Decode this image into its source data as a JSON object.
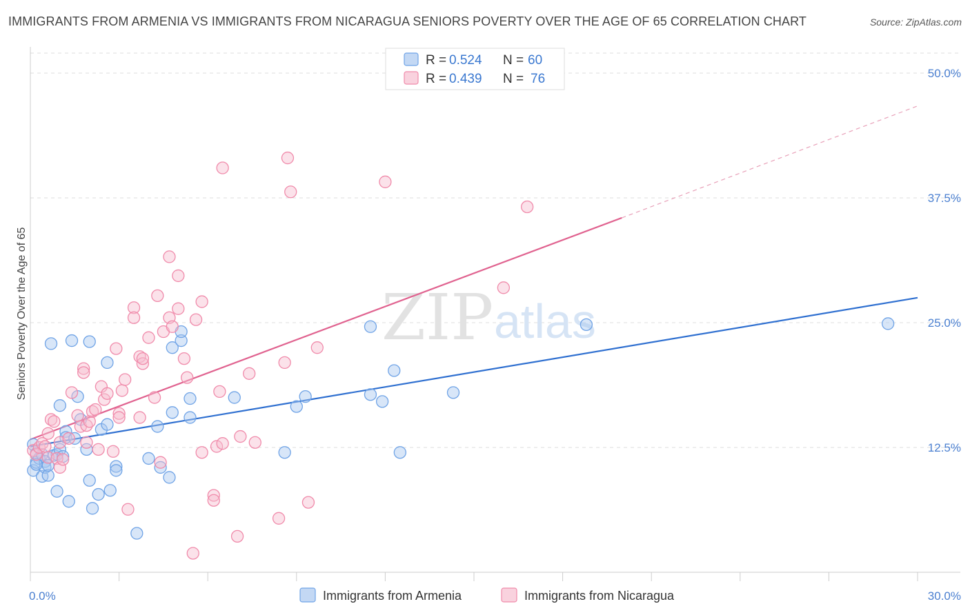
{
  "title": "IMMIGRANTS FROM ARMENIA VS IMMIGRANTS FROM NICARAGUA SENIORS POVERTY OVER THE AGE OF 65 CORRELATION CHART",
  "source": "Source: ZipAtlas.com",
  "watermark": {
    "zip": "ZIP",
    "atlas": "atlas"
  },
  "legend_box": {
    "rows": [
      {
        "r_label": "R =",
        "r_value": "0.524",
        "n_label": "N =",
        "n_value": "60"
      },
      {
        "r_label": "R =",
        "r_value": "0.439",
        "n_label": "N =",
        "n_value": "76"
      }
    ]
  },
  "chart_data": {
    "type": "scatter",
    "ylabel": "Seniors Poverty Over the Age of 65",
    "xlim": [
      0,
      30
    ],
    "ylim": [
      0,
      52
    ],
    "x_tick_labels": [
      "0.0%",
      "30.0%"
    ],
    "y_ticks": [
      12.5,
      25.0,
      37.5,
      50.0
    ],
    "y_tick_labels": [
      "12.5%",
      "25.0%",
      "37.5%",
      "50.0%"
    ],
    "grid": true,
    "legend_placement": "top-center and bottom",
    "series": [
      {
        "name": "Immigrants from Armenia",
        "color": "#6fa3e6",
        "fill": "#a9c8f0",
        "points": [
          [
            0.1,
            12.8
          ],
          [
            0.1,
            10.2
          ],
          [
            0.2,
            11.0
          ],
          [
            0.2,
            11.9
          ],
          [
            0.3,
            11.4
          ],
          [
            0.4,
            11.8
          ],
          [
            0.4,
            9.6
          ],
          [
            0.5,
            11.1
          ],
          [
            0.5,
            10.5
          ],
          [
            0.6,
            9.7
          ],
          [
            0.7,
            22.9
          ],
          [
            0.8,
            11.7
          ],
          [
            0.9,
            11.8
          ],
          [
            0.9,
            8.1
          ],
          [
            1.0,
            12.3
          ],
          [
            1.0,
            16.7
          ],
          [
            1.1,
            11.6
          ],
          [
            1.2,
            14.1
          ],
          [
            1.2,
            13.5
          ],
          [
            1.3,
            7.1
          ],
          [
            1.4,
            23.2
          ],
          [
            1.5,
            13.4
          ],
          [
            1.6,
            17.6
          ],
          [
            1.7,
            15.3
          ],
          [
            1.9,
            12.3
          ],
          [
            2.0,
            9.2
          ],
          [
            2.0,
            23.1
          ],
          [
            2.1,
            6.4
          ],
          [
            2.3,
            7.8
          ],
          [
            2.4,
            14.3
          ],
          [
            2.6,
            14.8
          ],
          [
            2.6,
            21.0
          ],
          [
            2.7,
            8.2
          ],
          [
            2.9,
            10.6
          ],
          [
            2.9,
            10.2
          ],
          [
            3.6,
            3.9
          ],
          [
            4.0,
            11.4
          ],
          [
            4.3,
            14.6
          ],
          [
            4.4,
            10.5
          ],
          [
            4.7,
            9.5
          ],
          [
            4.8,
            16.0
          ],
          [
            4.8,
            22.5
          ],
          [
            5.1,
            23.2
          ],
          [
            5.1,
            24.1
          ],
          [
            5.4,
            17.4
          ],
          [
            5.4,
            15.5
          ],
          [
            6.9,
            17.5
          ],
          [
            8.6,
            12.0
          ],
          [
            9.0,
            16.6
          ],
          [
            9.3,
            17.6
          ],
          [
            11.5,
            24.6
          ],
          [
            11.5,
            17.8
          ],
          [
            11.9,
            17.1
          ],
          [
            12.3,
            20.2
          ],
          [
            12.5,
            12.0
          ],
          [
            14.3,
            18.0
          ],
          [
            18.8,
            24.8
          ],
          [
            29.0,
            24.9
          ],
          [
            0.2,
            10.8
          ],
          [
            0.6,
            10.7
          ]
        ],
        "trend": {
          "x": [
            0,
            30
          ],
          "y": [
            12.6,
            27.5
          ]
        }
      },
      {
        "name": "Immigrants from Nicaragua",
        "color": "#f08aaa",
        "fill": "#f7bfd0",
        "points": [
          [
            0.1,
            12.2
          ],
          [
            0.2,
            11.8
          ],
          [
            0.3,
            12.5
          ],
          [
            0.4,
            12.9
          ],
          [
            0.5,
            12.6
          ],
          [
            0.6,
            11.5
          ],
          [
            0.6,
            13.9
          ],
          [
            0.7,
            15.3
          ],
          [
            0.8,
            15.1
          ],
          [
            0.9,
            11.4
          ],
          [
            1.0,
            10.5
          ],
          [
            1.0,
            13.0
          ],
          [
            1.1,
            11.3
          ],
          [
            1.3,
            13.4
          ],
          [
            1.4,
            18.0
          ],
          [
            1.6,
            15.7
          ],
          [
            1.7,
            14.6
          ],
          [
            1.8,
            20.4
          ],
          [
            1.8,
            20.0
          ],
          [
            1.9,
            14.7
          ],
          [
            2.0,
            15.1
          ],
          [
            2.1,
            16.1
          ],
          [
            2.2,
            16.3
          ],
          [
            2.3,
            12.3
          ],
          [
            2.4,
            18.6
          ],
          [
            2.5,
            17.3
          ],
          [
            2.6,
            17.9
          ],
          [
            2.8,
            12.1
          ],
          [
            2.9,
            22.4
          ],
          [
            3.0,
            15.9
          ],
          [
            3.0,
            15.5
          ],
          [
            3.1,
            18.2
          ],
          [
            3.2,
            19.3
          ],
          [
            3.3,
            6.3
          ],
          [
            3.5,
            26.5
          ],
          [
            3.5,
            25.5
          ],
          [
            3.7,
            21.6
          ],
          [
            3.7,
            15.5
          ],
          [
            3.8,
            20.9
          ],
          [
            3.8,
            21.4
          ],
          [
            4.0,
            23.5
          ],
          [
            4.2,
            17.5
          ],
          [
            4.3,
            27.7
          ],
          [
            4.4,
            11.0
          ],
          [
            4.5,
            24.1
          ],
          [
            4.7,
            31.6
          ],
          [
            4.7,
            25.5
          ],
          [
            4.8,
            24.6
          ],
          [
            5.0,
            26.4
          ],
          [
            5.0,
            29.7
          ],
          [
            5.2,
            21.4
          ],
          [
            5.3,
            19.5
          ],
          [
            5.5,
            1.9
          ],
          [
            5.6,
            25.3
          ],
          [
            5.8,
            27.1
          ],
          [
            5.8,
            12.0
          ],
          [
            6.2,
            7.7
          ],
          [
            6.2,
            7.2
          ],
          [
            6.3,
            12.6
          ],
          [
            6.4,
            18.1
          ],
          [
            6.5,
            12.9
          ],
          [
            6.5,
            40.5
          ],
          [
            7.0,
            3.6
          ],
          [
            7.1,
            13.6
          ],
          [
            7.4,
            19.9
          ],
          [
            7.6,
            13.0
          ],
          [
            8.4,
            5.4
          ],
          [
            8.6,
            21.0
          ],
          [
            8.7,
            41.5
          ],
          [
            8.8,
            38.1
          ],
          [
            9.4,
            7.0
          ],
          [
            9.7,
            22.5
          ],
          [
            12.0,
            39.1
          ],
          [
            16.0,
            28.5
          ],
          [
            16.8,
            36.6
          ],
          [
            1.9,
            13.0
          ]
        ],
        "trend": {
          "x": [
            0,
            20
          ],
          "y": [
            13.3,
            35.5
          ]
        },
        "trend_extension": {
          "x": [
            20,
            30
          ],
          "y": [
            35.5,
            46.7
          ]
        }
      }
    ]
  }
}
